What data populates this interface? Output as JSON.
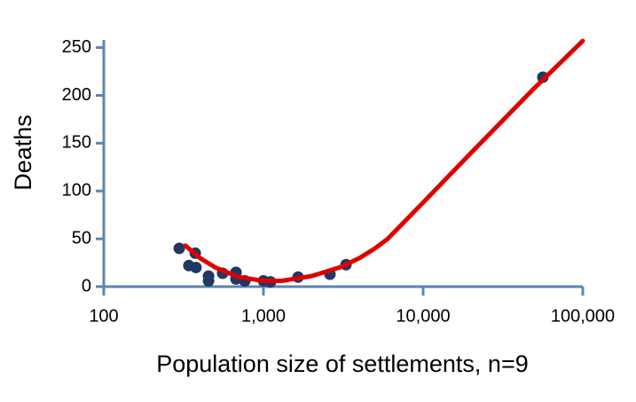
{
  "chart_data": {
    "type": "scatter",
    "x_label": "Population size of settlements, n=9",
    "y_label": "Deaths",
    "xscale": "log",
    "xlim": [
      100,
      100000
    ],
    "xticks": [
      100,
      {
        "value": 1000,
        "label": "1,000"
      },
      {
        "value": 10000,
        "label": "10,000"
      },
      {
        "value": 100000,
        "label": "100,000"
      }
    ],
    "ylim": [
      0,
      258
    ],
    "yticks": [
      0,
      50,
      100,
      150,
      200,
      250
    ],
    "axis_color": "#5b84b1",
    "series": [
      {
        "type": "scatter",
        "color": "#203864",
        "x": [
          297,
          341,
          378,
          374,
          453,
          453,
          555,
          673,
          673,
          764,
          1000,
          1108,
          1648,
          2610,
          3289,
          56234
        ],
        "values": [
          40,
          22,
          20,
          35,
          11,
          6,
          14,
          15,
          8,
          6,
          6,
          5,
          10,
          13,
          23,
          219
        ]
      },
      {
        "type": "line",
        "color": "#e00000",
        "x": [
          324,
          400,
          500,
          700,
          1000,
          1300,
          2000,
          3000,
          4000,
          5000,
          6000,
          10000,
          20000,
          50000,
          100000
        ],
        "values": [
          43,
          30,
          20,
          10,
          6,
          6,
          11,
          20,
          30,
          40,
          50,
          88,
          140,
          208,
          257
        ]
      }
    ]
  }
}
